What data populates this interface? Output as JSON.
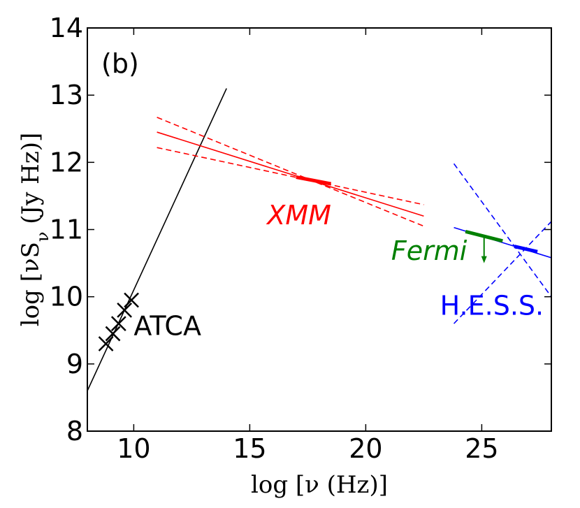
{
  "chart_data": {
    "type": "line",
    "panel_label": "(b)",
    "xlabel": "log [ν (Hz)]",
    "ylabel": "log [νS_ν (Jy Hz)]",
    "xlim": [
      8,
      28
    ],
    "ylim": [
      8,
      14
    ],
    "xticks": [
      10,
      15,
      20,
      25
    ],
    "yticks": [
      8,
      9,
      10,
      11,
      12,
      13,
      14
    ],
    "grid": false,
    "colors": {
      "atca": "#000000",
      "xmm": "#ff0000",
      "fermi": "#008000",
      "hess": "#0000ff"
    },
    "series": [
      {
        "name": "ATCA",
        "style": "crosses",
        "points": [
          [
            8.8,
            9.3
          ],
          [
            9.1,
            9.45
          ],
          [
            9.35,
            9.6
          ],
          [
            9.6,
            9.8
          ],
          [
            9.9,
            9.95
          ]
        ]
      },
      {
        "name": "ATCA fit",
        "style": "solid",
        "x": [
          8,
          14
        ],
        "y": [
          8.6,
          13.1
        ]
      },
      {
        "name": "XMM model",
        "style": "solid",
        "x": [
          11,
          22.5
        ],
        "y": [
          12.45,
          11.2
        ]
      },
      {
        "name": "XMM upper error",
        "style": "dashed",
        "x": [
          11,
          22.5
        ],
        "y": [
          12.67,
          11.05
        ]
      },
      {
        "name": "XMM lower error",
        "style": "dashed",
        "x": [
          11,
          22.5
        ],
        "y": [
          12.22,
          11.37
        ]
      },
      {
        "name": "XMM data",
        "style": "thick",
        "x": [
          17.0,
          18.5
        ],
        "y": [
          11.78,
          11.68
        ]
      },
      {
        "name": "H.E.S.S. extrapolation",
        "style": "solid",
        "x": [
          23.8,
          28
        ],
        "y": [
          11.03,
          10.58
        ]
      },
      {
        "name": "H.E.S.S. error 1",
        "style": "dashed",
        "x": [
          23.8,
          28
        ],
        "y": [
          11.98,
          10.0
        ]
      },
      {
        "name": "H.E.S.S. error 2",
        "style": "dashed",
        "x": [
          23.8,
          28
        ],
        "y": [
          9.6,
          11.12
        ]
      },
      {
        "name": "Fermi upper limit",
        "style": "thick",
        "x": [
          24.3,
          25.9
        ],
        "y": [
          10.97,
          10.83
        ]
      },
      {
        "name": "H.E.S.S. data",
        "style": "thick",
        "x": [
          26.4,
          27.4
        ],
        "y": [
          10.75,
          10.67
        ]
      }
    ],
    "upper_limit_arrow": {
      "x": 25.1,
      "y_from": 10.9,
      "y_to": 10.52
    },
    "annotations": [
      {
        "text": "ATCA",
        "x": 10.0,
        "y": 9.43,
        "color": "#000000",
        "italic": false
      },
      {
        "text": "XMM",
        "x": 15.75,
        "y": 11.08,
        "color": "#ff0000",
        "italic": true
      },
      {
        "text": "Fermi",
        "x": 21.1,
        "y": 10.55,
        "color": "#008000",
        "italic": true
      },
      {
        "text": "H.E.S.S.",
        "x": 23.2,
        "y": 9.73,
        "color": "#0000ff",
        "italic": false
      }
    ]
  }
}
